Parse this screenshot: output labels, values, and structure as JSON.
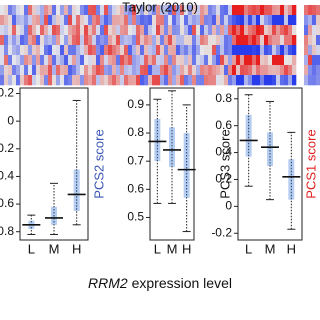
{
  "title": "Taylor (2010)",
  "xlabel": {
    "italic": "RRM2",
    "rest": "expression level"
  },
  "side_labels": [
    "PCS2 score",
    "PCS3 score",
    "PCS1 score"
  ],
  "chart_data": [
    {
      "type": "box",
      "categories": [
        "L",
        "M",
        "H"
      ],
      "ylim": [
        -0.86,
        0.24
      ],
      "yticks": [
        0.2,
        0.0,
        -0.2,
        -0.4,
        -0.6,
        -0.8
      ],
      "color": "#2a6fd6",
      "stats": [
        {
          "min": -0.82,
          "q1": -0.78,
          "median": -0.75,
          "q3": -0.72,
          "max": -0.68
        },
        {
          "min": -0.82,
          "q1": -0.75,
          "median": -0.7,
          "q3": -0.62,
          "max": -0.45
        },
        {
          "min": -0.75,
          "q1": -0.65,
          "median": -0.53,
          "q3": -0.35,
          "max": 0.15
        }
      ]
    },
    {
      "type": "box",
      "categories": [
        "L",
        "M",
        "H"
      ],
      "ylim": [
        0.42,
        0.96
      ],
      "yticks": [
        0.9,
        0.8,
        0.7,
        0.6,
        0.5
      ],
      "color": "#2a6fd6",
      "stats": [
        {
          "min": 0.55,
          "q1": 0.7,
          "median": 0.77,
          "q3": 0.85,
          "max": 0.92
        },
        {
          "min": 0.55,
          "q1": 0.68,
          "median": 0.74,
          "q3": 0.82,
          "max": 0.95
        },
        {
          "min": 0.45,
          "q1": 0.57,
          "median": 0.67,
          "q3": 0.8,
          "max": 0.9
        }
      ]
    },
    {
      "type": "box",
      "categories": [
        "L",
        "M",
        "H"
      ],
      "ylim": [
        -0.25,
        0.88
      ],
      "yticks": [
        0.8,
        0.6,
        0.4,
        0.2,
        0.0,
        -0.2
      ],
      "color": "#2a6fd6",
      "stats": [
        {
          "min": 0.15,
          "q1": 0.37,
          "median": 0.49,
          "q3": 0.68,
          "max": 0.83
        },
        {
          "min": 0.05,
          "q1": 0.3,
          "median": 0.44,
          "q3": 0.55,
          "max": 0.78
        },
        {
          "min": -0.17,
          "q1": 0.05,
          "median": 0.22,
          "q3": 0.35,
          "max": 0.55
        }
      ]
    }
  ]
}
